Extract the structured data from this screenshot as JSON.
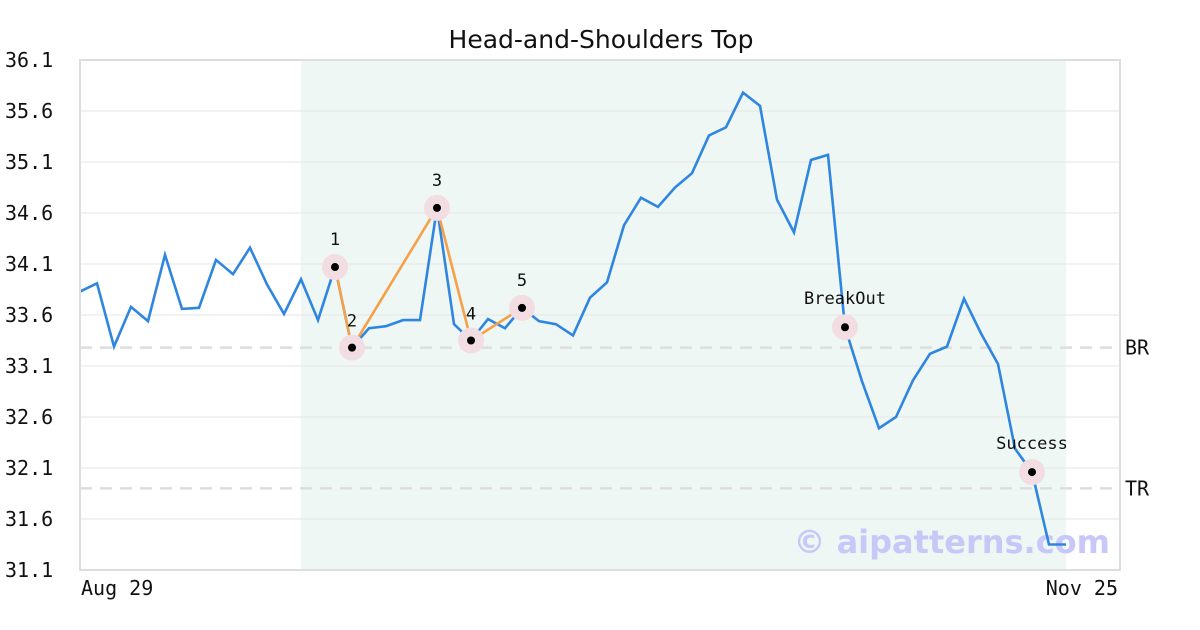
{
  "chart_data": {
    "type": "line",
    "title": "Head-and-Shoulders Top",
    "xlabel": "",
    "ylabel": "",
    "x_tick_labels": [
      "Aug 29",
      "Nov 25"
    ],
    "y_ticks": [
      "31.1",
      "31.6",
      "32.1",
      "32.6",
      "33.1",
      "33.6",
      "34.1",
      "34.6",
      "35.1",
      "35.6",
      "36.1"
    ],
    "ylim": [
      31.1,
      36.1
    ],
    "grid": true,
    "colors": {
      "price_line": "#2f86e0",
      "pattern_line": "#f5a04a",
      "pattern_zone": "#eef7f4",
      "marker_halo": "#f2dde3",
      "level_line": "#dddddd"
    },
    "series": [
      {
        "values": [
          33.83,
          33.91,
          33.29,
          33.68,
          33.54,
          34.19,
          33.66,
          33.67,
          34.14,
          34.0,
          34.26,
          33.9,
          33.61,
          33.95,
          33.55,
          34.07,
          33.28,
          33.47,
          33.49,
          33.55,
          33.55,
          34.65,
          33.51,
          33.35,
          33.56,
          33.47,
          33.67,
          33.54,
          33.51,
          33.4,
          33.77,
          33.92,
          34.48,
          34.75,
          34.66,
          34.85,
          34.99,
          35.36,
          35.44,
          35.78,
          35.65,
          34.73,
          34.41,
          35.12,
          35.17,
          33.48,
          32.95,
          32.49,
          32.6,
          32.96,
          33.22,
          33.29,
          33.76,
          33.42,
          33.12,
          32.29,
          32.06,
          31.35,
          31.35
        ]
      }
    ],
    "pattern_points": [
      {
        "label": "1",
        "index": 15,
        "value": 34.07
      },
      {
        "label": "2",
        "index": 16,
        "value": 33.28
      },
      {
        "label": "3",
        "index": 21,
        "value": 34.65
      },
      {
        "label": "4",
        "index": 23,
        "value": 33.35
      },
      {
        "label": "5",
        "index": 26,
        "value": 33.67
      }
    ],
    "annotations": [
      {
        "label": "BreakOut",
        "index": 45,
        "value": 33.48
      },
      {
        "label": "Success",
        "index": 56,
        "value": 32.06
      }
    ],
    "levels": [
      {
        "label": "BR",
        "value": 33.28
      },
      {
        "label": "TR",
        "value": 31.9
      }
    ],
    "pattern_zone": {
      "start_index": 13,
      "end_index": 58
    },
    "watermark": "© aipatterns.com"
  }
}
